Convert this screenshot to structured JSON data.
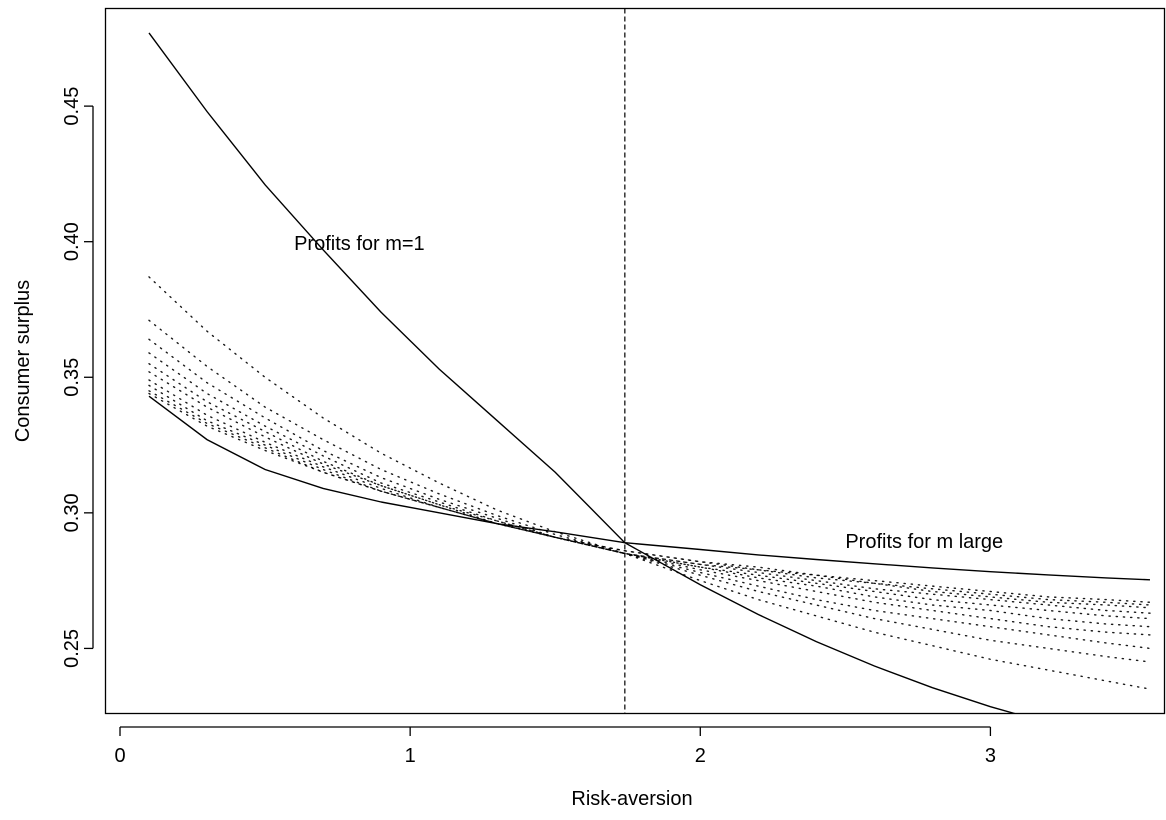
{
  "chart_data": {
    "type": "line",
    "title": "",
    "xlabel": "Risk-aversion",
    "ylabel": "Consumer surplus",
    "xlim": [
      -0.05,
      3.6
    ],
    "ylim": [
      0.226,
      0.486
    ],
    "x_ticks": [
      0,
      1,
      2,
      3
    ],
    "y_ticks": [
      0.25,
      0.3,
      0.35,
      0.4,
      0.45
    ],
    "x_tick_labels": [
      "0",
      "1",
      "2",
      "3"
    ],
    "y_tick_labels": [
      "0.25",
      "0.30",
      "0.35",
      "0.40",
      "0.45"
    ],
    "grid": false,
    "legend": "none",
    "x_range": [
      0.1,
      3.55
    ],
    "vertical_reference_line": {
      "x": 1.74,
      "style": "dashed"
    },
    "series": [
      {
        "style": "solid",
        "x": [
          0.1,
          0.3,
          0.5,
          0.7,
          0.9,
          1.1,
          1.3,
          1.5,
          1.74,
          2.0,
          2.2,
          2.4,
          2.6,
          2.8,
          3.0,
          3.2
        ],
        "values": [
          0.477,
          0.448,
          0.421,
          0.397,
          0.374,
          0.353,
          0.334,
          0.315,
          0.289,
          0.2735,
          0.2625,
          0.2525,
          0.2435,
          0.2355,
          0.2285,
          0.2225
        ]
      },
      {
        "style": "solid",
        "x": [
          0.1,
          0.3,
          0.5,
          0.7,
          0.9,
          1.1,
          1.3,
          1.5,
          1.74,
          2.0,
          2.2,
          2.4,
          2.6,
          2.8,
          3.0,
          3.2,
          3.4,
          3.55
        ],
        "values": [
          0.343,
          0.327,
          0.316,
          0.309,
          0.304,
          0.3,
          0.296,
          0.293,
          0.289,
          0.2865,
          0.2845,
          0.2828,
          0.2812,
          0.2797,
          0.2783,
          0.2771,
          0.276,
          0.2753
        ]
      },
      {
        "style": "dotted",
        "x": [
          0.1,
          0.3,
          0.5,
          0.7,
          0.9,
          1.1,
          1.3,
          1.5,
          1.74,
          2.0,
          2.2,
          2.4,
          2.6,
          2.8,
          3.0,
          3.2,
          3.4,
          3.55
        ],
        "values": [
          0.387,
          0.367,
          0.35,
          0.335,
          0.322,
          0.311,
          0.301,
          0.293,
          0.285,
          0.275,
          0.268,
          0.262,
          0.256,
          0.251,
          0.246,
          0.242,
          0.238,
          0.235
        ]
      },
      {
        "style": "dotted",
        "x": [
          0.1,
          0.3,
          0.5,
          0.7,
          0.9,
          1.1,
          1.3,
          1.5,
          1.74,
          2.0,
          2.2,
          2.4,
          2.6,
          2.8,
          3.0,
          3.2,
          3.4,
          3.55
        ],
        "values": [
          0.371,
          0.354,
          0.339,
          0.327,
          0.316,
          0.307,
          0.299,
          0.292,
          0.285,
          0.277,
          0.271,
          0.266,
          0.261,
          0.257,
          0.253,
          0.25,
          0.247,
          0.245
        ]
      },
      {
        "style": "dotted",
        "x": [
          0.1,
          0.3,
          0.5,
          0.7,
          0.9,
          1.1,
          1.3,
          1.5,
          1.74,
          2.0,
          2.2,
          2.4,
          2.6,
          2.8,
          3.0,
          3.2,
          3.4,
          3.55
        ],
        "values": [
          0.364,
          0.348,
          0.335,
          0.323,
          0.313,
          0.305,
          0.298,
          0.291,
          0.285,
          0.278,
          0.273,
          0.268,
          0.264,
          0.261,
          0.258,
          0.255,
          0.252,
          0.25
        ]
      },
      {
        "style": "dotted",
        "x": [
          0.1,
          0.3,
          0.5,
          0.7,
          0.9,
          1.1,
          1.3,
          1.5,
          1.74,
          2.0,
          2.2,
          2.4,
          2.6,
          2.8,
          3.0,
          3.2,
          3.4,
          3.55
        ],
        "values": [
          0.359,
          0.344,
          0.332,
          0.321,
          0.311,
          0.304,
          0.297,
          0.291,
          0.285,
          0.279,
          0.275,
          0.271,
          0.267,
          0.264,
          0.261,
          0.258,
          0.256,
          0.255
        ]
      },
      {
        "style": "dotted",
        "x": [
          0.1,
          0.3,
          0.5,
          0.7,
          0.9,
          1.1,
          1.3,
          1.5,
          1.74,
          2.0,
          2.2,
          2.4,
          2.6,
          2.8,
          3.0,
          3.2,
          3.4,
          3.55
        ],
        "values": [
          0.355,
          0.341,
          0.33,
          0.319,
          0.31,
          0.303,
          0.297,
          0.291,
          0.285,
          0.28,
          0.276,
          0.273,
          0.269,
          0.266,
          0.264,
          0.261,
          0.259,
          0.258
        ]
      },
      {
        "style": "dotted",
        "x": [
          0.1,
          0.3,
          0.5,
          0.7,
          0.9,
          1.1,
          1.3,
          1.5,
          1.74,
          2.0,
          2.2,
          2.4,
          2.6,
          2.8,
          3.0,
          3.2,
          3.4,
          3.55
        ],
        "values": [
          0.352,
          0.339,
          0.328,
          0.318,
          0.31,
          0.303,
          0.296,
          0.291,
          0.285,
          0.28,
          0.277,
          0.274,
          0.271,
          0.268,
          0.266,
          0.264,
          0.262,
          0.261
        ]
      },
      {
        "style": "dotted",
        "x": [
          0.1,
          0.3,
          0.5,
          0.7,
          0.9,
          1.1,
          1.3,
          1.5,
          1.74,
          2.0,
          2.2,
          2.4,
          2.6,
          2.8,
          3.0,
          3.2,
          3.4,
          3.55
        ],
        "values": [
          0.349,
          0.336,
          0.326,
          0.317,
          0.309,
          0.302,
          0.296,
          0.291,
          0.285,
          0.281,
          0.278,
          0.275,
          0.272,
          0.27,
          0.268,
          0.266,
          0.264,
          0.263
        ]
      },
      {
        "style": "dotted",
        "x": [
          0.1,
          0.3,
          0.5,
          0.7,
          0.9,
          1.1,
          1.3,
          1.5,
          1.74,
          2.0,
          2.2,
          2.4,
          2.6,
          2.8,
          3.0,
          3.2,
          3.4,
          3.55
        ],
        "values": [
          0.347,
          0.334,
          0.325,
          0.316,
          0.308,
          0.302,
          0.296,
          0.291,
          0.285,
          0.281,
          0.279,
          0.276,
          0.274,
          0.271,
          0.269,
          0.267,
          0.266,
          0.265
        ]
      },
      {
        "style": "dotted",
        "x": [
          0.1,
          0.3,
          0.5,
          0.7,
          0.9,
          1.1,
          1.3,
          1.5,
          1.74,
          2.0,
          2.2,
          2.4,
          2.6,
          2.8,
          3.0,
          3.2,
          3.4,
          3.55
        ],
        "values": [
          0.345,
          0.333,
          0.324,
          0.315,
          0.308,
          0.302,
          0.296,
          0.291,
          0.286,
          0.282,
          0.279,
          0.277,
          0.274,
          0.272,
          0.27,
          0.268,
          0.267,
          0.266
        ]
      },
      {
        "style": "dotted",
        "x": [
          0.1,
          0.3,
          0.5,
          0.7,
          0.9,
          1.1,
          1.3,
          1.5,
          1.74,
          2.0,
          2.2,
          2.4,
          2.6,
          2.8,
          3.0,
          3.2,
          3.4,
          3.55
        ],
        "values": [
          0.344,
          0.332,
          0.323,
          0.315,
          0.308,
          0.302,
          0.296,
          0.291,
          0.286,
          0.282,
          0.28,
          0.277,
          0.275,
          0.273,
          0.271,
          0.269,
          0.268,
          0.267
        ]
      }
    ],
    "annotations": [
      {
        "text": "Profits for m=1",
        "x": 0.6,
        "y": 0.397
      },
      {
        "text": "Profits for m large",
        "x": 2.5,
        "y": 0.287
      }
    ]
  }
}
